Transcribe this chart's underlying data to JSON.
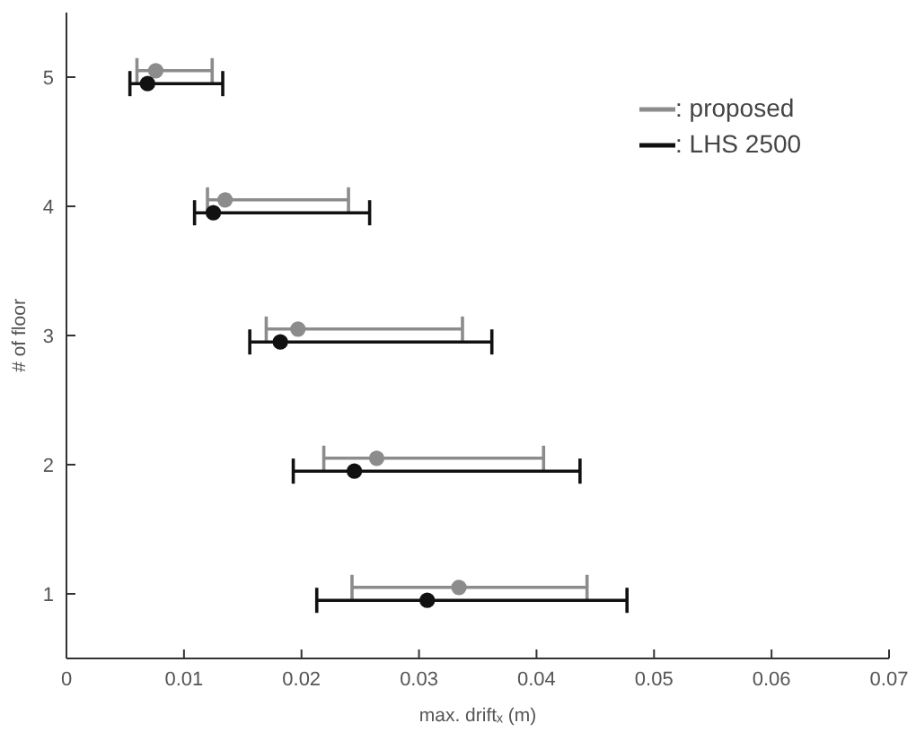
{
  "chart_data": {
    "type": "scatter",
    "xlabel": "max. driftₓ (m)",
    "ylabel": "# of floor",
    "xlim": [
      0,
      0.07
    ],
    "xticks": [
      0,
      0.01,
      0.02,
      0.03,
      0.04,
      0.05,
      0.06,
      0.07
    ],
    "ylim": [
      0.5,
      5.5
    ],
    "yticks": [
      1,
      2,
      3,
      4,
      5
    ],
    "marker": "circle",
    "legend": "top right",
    "series": [
      {
        "name": ": proposed",
        "color": "#8c8c8c",
        "x": [
          0.0334,
          0.0264,
          0.0197,
          0.0135,
          0.0076
        ],
        "values": [
          1.05,
          2.05,
          3.05,
          4.05,
          5.05
        ],
        "xerrors": [
          [
            0.0243,
            0.0443
          ],
          [
            0.0219,
            0.0406
          ],
          [
            0.017,
            0.0337
          ],
          [
            0.012,
            0.024
          ],
          [
            0.006,
            0.0124
          ]
        ]
      },
      {
        "name": ": LHS 2500",
        "color": "#111111",
        "x": [
          0.0307,
          0.0245,
          0.0182,
          0.0125,
          0.0069
        ],
        "values": [
          0.95,
          1.95,
          2.95,
          3.95,
          4.95
        ],
        "xerrors": [
          [
            0.0213,
            0.0477
          ],
          [
            0.0193,
            0.0437
          ],
          [
            0.0156,
            0.0362
          ],
          [
            0.0109,
            0.0258
          ],
          [
            0.0054,
            0.0133
          ]
        ]
      }
    ]
  }
}
